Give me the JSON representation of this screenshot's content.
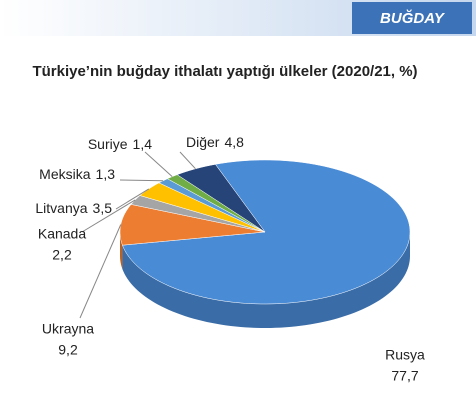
{
  "header": "BUĞDAY",
  "chart_data": {
    "type": "pie3d",
    "title": "Türkiye’nin buğday ithalatı yaptığı ülkeler (2020/21, %)",
    "categories": [
      "Rusya",
      "Ukrayna",
      "Kanada",
      "Litvanya",
      "Meksika",
      "Suriye",
      "Diğer"
    ],
    "values": [
      77.7,
      9.2,
      2.2,
      3.5,
      1.3,
      1.4,
      4.8
    ],
    "value_labels": [
      "77,7",
      "9,2",
      "2,2",
      "3,5",
      "1,3",
      "1,4",
      "4,8"
    ],
    "colors": [
      "#4a8bd6",
      "#ed7d31",
      "#a5a5a5",
      "#ffc000",
      "#5b9bd5",
      "#70ad47",
      "#264478"
    ]
  }
}
